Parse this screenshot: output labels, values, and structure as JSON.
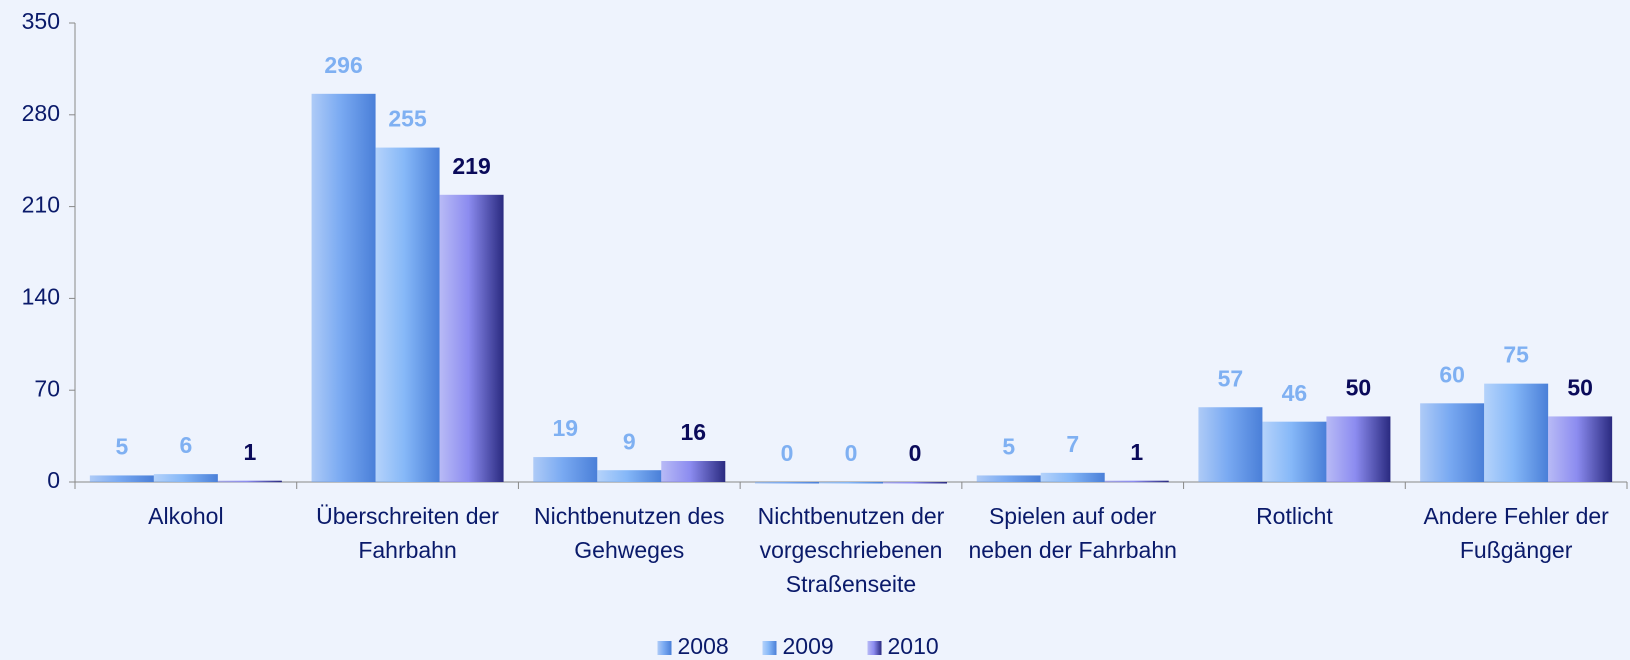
{
  "chart_data": {
    "type": "bar",
    "categories": [
      "Alkohol",
      "Überschreiten der Fahrbahn",
      "Nichtbenutzen des Gehweges",
      "Nichtbenutzen der vorgeschriebenen Straßenseite",
      "Spielen auf oder neben der Fahrbahn",
      "Rotlicht",
      "Andere Fehler der Fußgänger"
    ],
    "series": [
      {
        "name": "2008",
        "color": "#7aaaf2",
        "label_color": "#7fb0f2",
        "values": [
          5,
          296,
          19,
          0,
          5,
          57,
          60
        ]
      },
      {
        "name": "2009",
        "color": "#86b8f8",
        "label_color": "#7fb0f2",
        "values": [
          6,
          255,
          9,
          0,
          7,
          46,
          75
        ]
      },
      {
        "name": "2010",
        "color": "#8c8cf0",
        "label_color": "#0a0a5a",
        "values": [
          1,
          219,
          16,
          0,
          1,
          50,
          50
        ]
      }
    ],
    "ylim": [
      0,
      350
    ],
    "yticks": [
      0,
      70,
      140,
      210,
      280,
      350
    ],
    "grid": false,
    "legend": "bottom"
  }
}
